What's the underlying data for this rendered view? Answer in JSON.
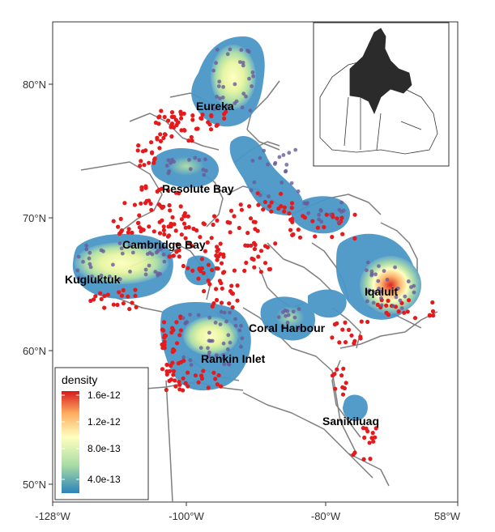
{
  "map": {
    "y_ticks": [
      "80°N",
      "70°N",
      "60°N",
      "50°N"
    ],
    "x_ticks": [
      "-128°W",
      "-100°W",
      "-80°W",
      "58°W"
    ],
    "cities": [
      {
        "id": "eureka",
        "label": "Eureka"
      },
      {
        "id": "resolute-bay",
        "label": "Resolute Bay"
      },
      {
        "id": "cambridge-bay",
        "label": "Cambridge Bay"
      },
      {
        "id": "kugluktuk",
        "label": "Kugluktuk"
      },
      {
        "id": "iqaluit",
        "label": "Iqaluit"
      },
      {
        "id": "coral-harbour",
        "label": "Coral Harbour"
      },
      {
        "id": "rankin-inlet",
        "label": "Rankin Inlet"
      },
      {
        "id": "sanikiluaq",
        "label": "Sanikiluaq"
      }
    ],
    "legend": {
      "title": "density",
      "labels": [
        "1.6e-12",
        "1.2e-12",
        "8.0e-13",
        "4.0e-13"
      ],
      "colors": [
        "#d7191c",
        "#fdae61",
        "#ffffbf",
        "#abdda4",
        "#2b83ba"
      ]
    },
    "colors": {
      "point": "#e41a1c",
      "low_density": "#3a8ac4",
      "coast": "#7a7a7a",
      "territory_fill": "#2b2b2b"
    }
  }
}
